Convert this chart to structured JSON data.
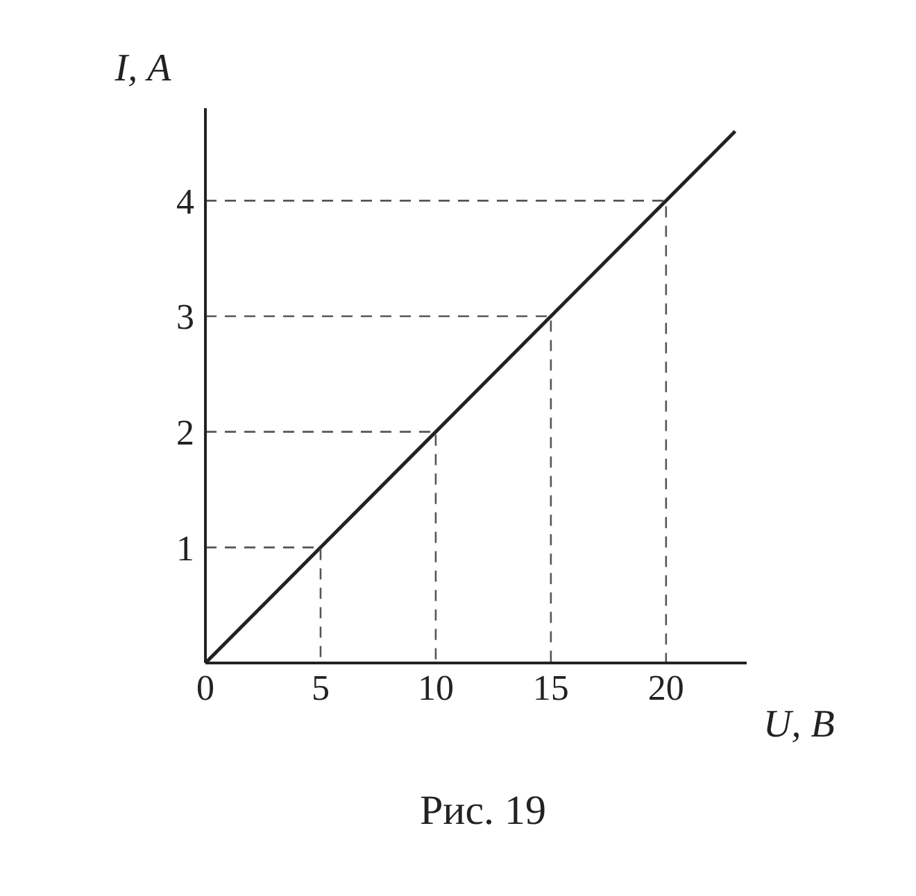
{
  "chart_data": {
    "type": "line",
    "xlabel": "U, В",
    "ylabel": "I, А",
    "xlim": [
      0,
      23.5
    ],
    "ylim": [
      0,
      4.8
    ],
    "xticks": [
      0,
      5,
      10,
      15,
      20
    ],
    "yticks": [
      1,
      2,
      3,
      4
    ],
    "grid": false,
    "legend": false,
    "marker": "none",
    "annotations": [
      "Рис. 19"
    ],
    "series": [
      {
        "color": "#222222",
        "x": [
          0,
          23
        ],
        "values": [
          0,
          4.6
        ],
        "line_style": "solid"
      },
      {
        "color": "#555555",
        "x": [
          0,
          5,
          5
        ],
        "values": [
          1,
          1,
          0
        ],
        "line_style": "dashed"
      },
      {
        "color": "#555555",
        "x": [
          0,
          10,
          10
        ],
        "values": [
          2,
          2,
          0
        ],
        "line_style": "dashed"
      },
      {
        "color": "#555555",
        "x": [
          0,
          15,
          15
        ],
        "values": [
          3,
          3,
          0
        ],
        "line_style": "dashed"
      },
      {
        "color": "#555555",
        "x": [
          0,
          20,
          20
        ],
        "values": [
          4,
          4,
          0
        ],
        "line_style": "dashed"
      }
    ]
  }
}
